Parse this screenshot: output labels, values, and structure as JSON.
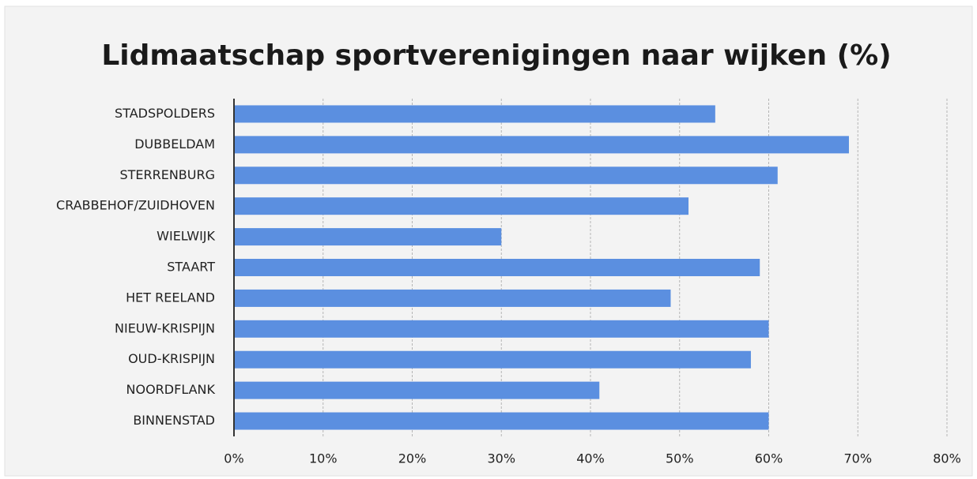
{
  "chart_data": {
    "type": "bar",
    "orientation": "horizontal",
    "title": "Lidmaatschap sportverenigingen naar wijken (%)",
    "categories": [
      "STADSPOLDERS",
      "DUBBELDAM",
      "STERRENBURG",
      "CRABBEHOF/ZUIDHOVEN",
      "WIELWIJK",
      "STAART",
      "HET REELAND",
      "NIEUW-KRISPIJN",
      "OUD-KRISPIJN",
      "NOORDFLANK",
      "BINNENSTAD"
    ],
    "values": [
      54,
      69,
      61,
      51,
      30,
      59,
      49,
      60,
      58,
      41,
      60
    ],
    "color": "#5b8fe0",
    "xlim": [
      0,
      80
    ],
    "xticks": [
      {
        "value": 0,
        "label": "0%"
      },
      {
        "value": 10,
        "label": "10%"
      },
      {
        "value": 20,
        "label": "20%"
      },
      {
        "value": 30,
        "label": "30%"
      },
      {
        "value": 40,
        "label": "40%"
      },
      {
        "value": 50,
        "label": "50%"
      },
      {
        "value": 60,
        "label": "60%"
      },
      {
        "value": 70,
        "label": "70%"
      },
      {
        "value": 80,
        "label": "80%"
      }
    ],
    "grid": true
  }
}
